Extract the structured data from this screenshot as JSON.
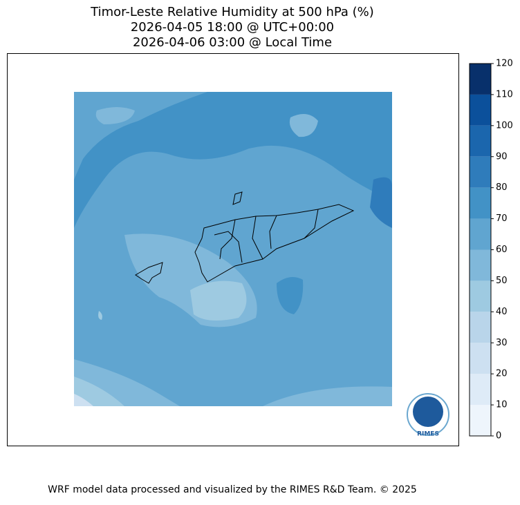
{
  "header": {
    "title_lines": [
      "Timor-Leste Relative Humidity at 500 hPa (%)",
      "2026-04-05 18:00 @ UTC+00:00",
      "2026-04-06 03:00 @ Local Time"
    ]
  },
  "colorbar": {
    "ticks": [
      0,
      10,
      20,
      30,
      40,
      50,
      60,
      70,
      80,
      90,
      100,
      110,
      120
    ],
    "colors": [
      "#eef5fc",
      "#deebf7",
      "#cde0f1",
      "#b9d5ea",
      "#9ecae1",
      "#80b8da",
      "#60a5d0",
      "#4292c6",
      "#2f7cbb",
      "#1b66ad",
      "#0b509b",
      "#08306b"
    ]
  },
  "logo": {
    "text": "RIMES"
  },
  "footer": {
    "text": "WRF model data processed and visualized by the RIMES R&D Team. © 2025"
  }
}
